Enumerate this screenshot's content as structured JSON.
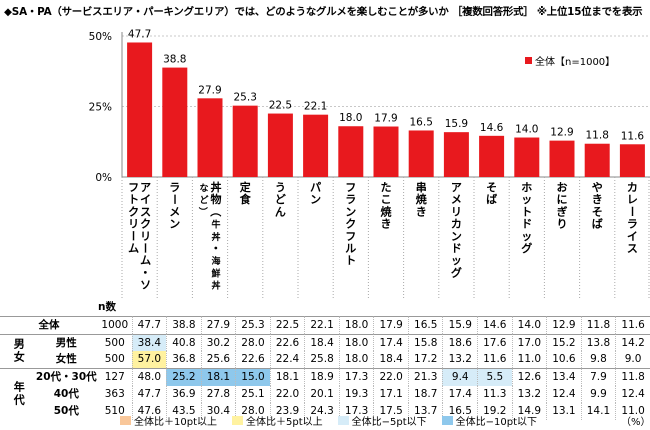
{
  "title": "◆SA・PA（サービスエリア・パーキングエリア）では、どのようなグルメを楽しむことが多いか ［複数回答形式］ ※上位15位までを表示",
  "chart_data": {
    "type": "bar",
    "categories": [
      "アイスクリーム・ソフトクリーム",
      "ラーメン",
      "丼物（牛丼・海鮮丼など）",
      "定食",
      "うどん",
      "パン",
      "フランクフルト",
      "たこ焼き",
      "串焼き",
      "アメリカンドッグ",
      "そば",
      "ホットドッグ",
      "おにぎり",
      "やきそば",
      "カレーライス"
    ],
    "series": [
      {
        "name": "全体【n=1000】",
        "values": [
          47.7,
          38.8,
          27.9,
          25.3,
          22.5,
          22.1,
          18.0,
          17.9,
          16.5,
          15.9,
          14.6,
          14.0,
          12.9,
          11.8,
          11.6
        ],
        "color": "#e8191e"
      }
    ],
    "yticks": [
      "50%",
      "25%",
      "0%"
    ],
    "ylim": [
      0,
      50
    ],
    "legend_position": "top-right"
  },
  "table": {
    "n_header": "n数",
    "rows": [
      {
        "group": "",
        "label": "全体",
        "n": "1000",
        "values": [
          "47.7",
          "38.8",
          "27.9",
          "25.3",
          "22.5",
          "22.1",
          "18.0",
          "17.9",
          "16.5",
          "15.9",
          "14.6",
          "14.0",
          "12.9",
          "11.8",
          "11.6"
        ],
        "hl": [
          0,
          0,
          0,
          0,
          0,
          0,
          0,
          0,
          0,
          0,
          0,
          0,
          0,
          0,
          0
        ]
      },
      {
        "group": "男女",
        "label": "男性",
        "n": "500",
        "values": [
          "38.4",
          "40.8",
          "30.2",
          "28.0",
          "22.6",
          "18.4",
          "18.0",
          "17.4",
          "15.8",
          "18.6",
          "17.6",
          "17.0",
          "15.2",
          "13.8",
          "14.2"
        ],
        "hl": [
          -1,
          0,
          0,
          0,
          0,
          0,
          0,
          0,
          0,
          0,
          0,
          0,
          0,
          0,
          0
        ]
      },
      {
        "group": "",
        "label": "女性",
        "n": "500",
        "values": [
          "57.0",
          "36.8",
          "25.6",
          "22.6",
          "22.4",
          "25.8",
          "18.0",
          "18.4",
          "17.2",
          "13.2",
          "11.6",
          "11.0",
          "10.6",
          "9.8",
          "9.0"
        ],
        "hl": [
          1,
          0,
          0,
          0,
          0,
          0,
          0,
          0,
          0,
          0,
          0,
          0,
          0,
          0,
          0
        ]
      },
      {
        "group": "年代",
        "label": "20代・30代",
        "n": "127",
        "values": [
          "48.0",
          "25.2",
          "18.1",
          "15.0",
          "18.1",
          "18.9",
          "17.3",
          "22.0",
          "21.3",
          "9.4",
          "5.5",
          "12.6",
          "13.4",
          "7.9",
          "11.8"
        ],
        "hl": [
          0,
          -2,
          -2,
          -2,
          0,
          0,
          0,
          0,
          0,
          -1,
          -1,
          0,
          0,
          0,
          0
        ]
      },
      {
        "group": "",
        "label": "40代",
        "n": "363",
        "values": [
          "47.7",
          "36.9",
          "27.8",
          "25.1",
          "22.0",
          "20.1",
          "19.3",
          "17.1",
          "18.7",
          "17.4",
          "11.3",
          "13.2",
          "12.4",
          "9.9",
          "12.4"
        ],
        "hl": [
          0,
          0,
          0,
          0,
          0,
          0,
          0,
          0,
          0,
          0,
          0,
          0,
          0,
          0,
          0
        ]
      },
      {
        "group": "",
        "label": "50代",
        "n": "510",
        "values": [
          "47.6",
          "43.5",
          "30.4",
          "28.0",
          "23.9",
          "24.3",
          "17.3",
          "17.5",
          "13.7",
          "16.5",
          "19.2",
          "14.9",
          "13.1",
          "14.1",
          "11.0"
        ],
        "hl": [
          0,
          0,
          0,
          0,
          0,
          0,
          0,
          0,
          0,
          0,
          0,
          0,
          0,
          0,
          0
        ]
      }
    ],
    "highlight_colors": {
      "plus10": "#f9c79a",
      "plus5": "#fff2a0",
      "minus5": "#d6ecf8",
      "minus10": "#8ec8ec"
    }
  },
  "footer_legend": [
    {
      "label": "全体比＋10pt以上",
      "color": "#f9c79a"
    },
    {
      "label": "全体比＋5pt以上",
      "color": "#fff2a0"
    },
    {
      "label": "全体比−5pt以下",
      "color": "#d6ecf8"
    },
    {
      "label": "全体比−10pt以下",
      "color": "#8ec8ec"
    }
  ],
  "percent_unit": "（%）"
}
